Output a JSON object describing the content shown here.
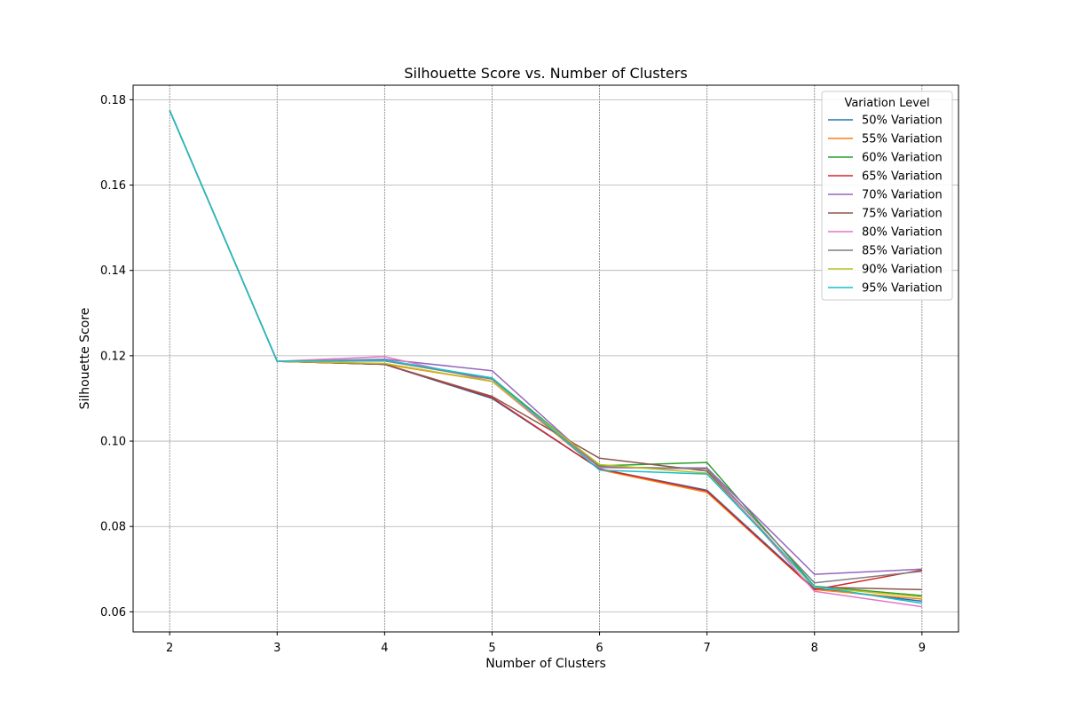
{
  "chart_data": {
    "type": "line",
    "title": "Silhouette Score vs. Number of Clusters",
    "xlabel": "Number of Clusters",
    "ylabel": "Silhouette Score",
    "x": [
      2,
      3,
      4,
      5,
      6,
      7,
      8,
      9
    ],
    "xlim": [
      1.66,
      9.34
    ],
    "ylim": [
      0.0553,
      0.1834
    ],
    "yticks": [
      "0.06",
      "0.08",
      "0.10",
      "0.12",
      "0.14",
      "0.16",
      "0.18"
    ],
    "xticks": [
      "2",
      "3",
      "4",
      "5",
      "6",
      "7",
      "8",
      "9"
    ],
    "grid": true,
    "legend": {
      "title": "Variation Level",
      "position": "top-right"
    },
    "series": [
      {
        "name": "50% Variation",
        "color": "#1f77b4",
        "values": [
          0.1775,
          0.1187,
          0.118,
          0.11,
          0.0935,
          0.0885,
          0.0655,
          0.0625
        ]
      },
      {
        "name": "55% Variation",
        "color": "#ff7f0e",
        "values": [
          0.1775,
          0.1187,
          0.118,
          0.114,
          0.0933,
          0.088,
          0.0652,
          0.063
        ]
      },
      {
        "name": "60% Variation",
        "color": "#2ca02c",
        "values": [
          0.1775,
          0.1187,
          0.1188,
          0.1148,
          0.0942,
          0.095,
          0.066,
          0.0638
        ]
      },
      {
        "name": "65% Variation",
        "color": "#d62728",
        "values": [
          0.1775,
          0.1187,
          0.118,
          0.1102,
          0.0935,
          0.0883,
          0.0652,
          0.0698
        ]
      },
      {
        "name": "70% Variation",
        "color": "#9467bd",
        "values": [
          0.1775,
          0.1187,
          0.1192,
          0.1165,
          0.0938,
          0.0937,
          0.0688,
          0.07
        ]
      },
      {
        "name": "75% Variation",
        "color": "#8c564b",
        "values": [
          0.1775,
          0.1187,
          0.118,
          0.1105,
          0.096,
          0.093,
          0.0658,
          0.0652
        ]
      },
      {
        "name": "80% Variation",
        "color": "#e377c2",
        "values": [
          0.1775,
          0.1187,
          0.1198,
          0.114,
          0.0938,
          0.0935,
          0.0648,
          0.0612
        ]
      },
      {
        "name": "85% Variation",
        "color": "#7f7f7f",
        "values": [
          0.1775,
          0.1187,
          0.1188,
          0.1145,
          0.094,
          0.0935,
          0.0668,
          0.0695
        ]
      },
      {
        "name": "90% Variation",
        "color": "#bcbd22",
        "values": [
          0.1775,
          0.1187,
          0.1182,
          0.114,
          0.0945,
          0.0925,
          0.0658,
          0.0635
        ]
      },
      {
        "name": "95% Variation",
        "color": "#17becf",
        "values": [
          0.1775,
          0.1187,
          0.119,
          0.1148,
          0.0932,
          0.0923,
          0.066,
          0.062
        ]
      }
    ]
  }
}
